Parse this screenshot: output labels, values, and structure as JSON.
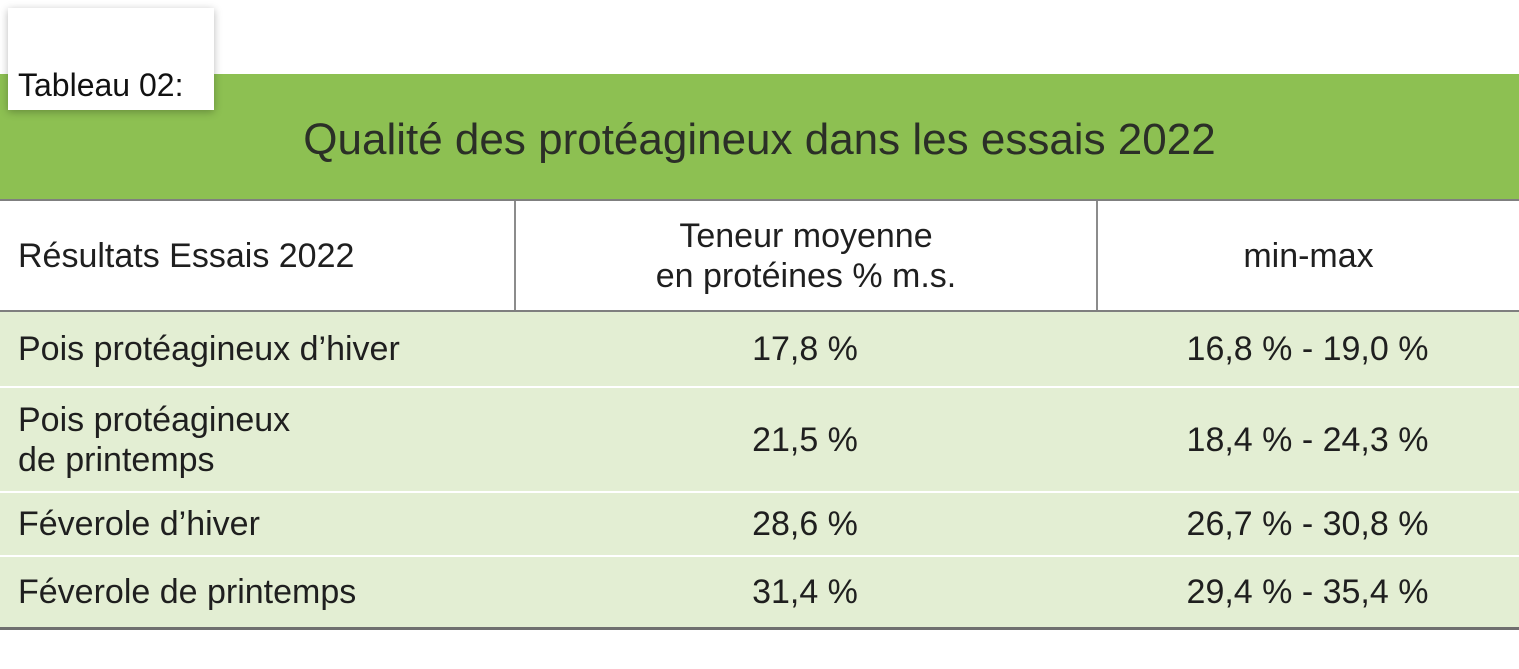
{
  "label": "Tableau 02:",
  "title": "Qualité des protéagineux dans les essais 2022",
  "headers": {
    "col1": "Résultats Essais 2022",
    "col2": "Teneur moyenne\nen protéines % m.s.",
    "col3": "min-max"
  },
  "rows": [
    {
      "name": "Pois protéagineux d’hiver",
      "mean": "17,8 %",
      "range": "16,8 % - 19,0 %"
    },
    {
      "name": "Pois protéagineux\nde printemps",
      "mean": "21,5 %",
      "range": "18,4 % - 24,3 %"
    },
    {
      "name": "Féverole d’hiver",
      "mean": "28,6 %",
      "range": "26,7 % - 30,8 %"
    },
    {
      "name": "Féverole de printemps",
      "mean": "31,4 %",
      "range": "29,4 % - 35,4 %"
    }
  ],
  "colors": {
    "title_band": "#8dc052",
    "body_background": "#e3eed3",
    "rule": "#7f7f7f"
  }
}
